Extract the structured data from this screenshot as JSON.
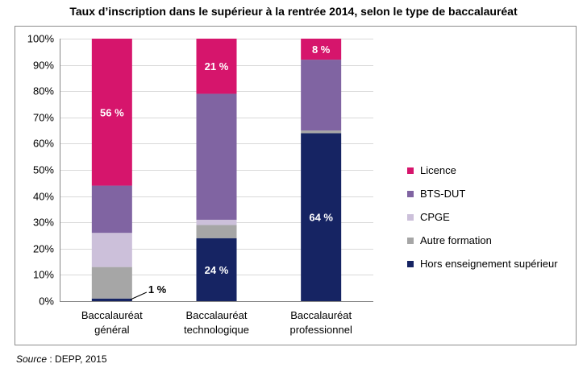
{
  "chart_data": {
    "type": "bar",
    "stacked": true,
    "title": "Taux d’inscription dans le supérieur à la rentrée 2014, selon le type de baccalauréat",
    "categories": [
      [
        "Baccalauréat",
        "général"
      ],
      [
        "Baccalauréat",
        "technologique"
      ],
      [
        "Baccalauréat",
        "professionnel"
      ]
    ],
    "ylim": [
      0,
      100
    ],
    "yticks": [
      "0%",
      "10%",
      "20%",
      "30%",
      "40%",
      "50%",
      "60%",
      "70%",
      "80%",
      "90%",
      "100%"
    ],
    "grid": true,
    "legend_position": "right",
    "series": [
      {
        "name": "Hors enseignement supérieur",
        "color": "#162463",
        "values": [
          1,
          24,
          64
        ],
        "labels": [
          "1 %",
          "24 %",
          "64 %"
        ]
      },
      {
        "name": "Autre formation",
        "color": "#a6a6a6",
        "values": [
          12,
          5,
          1
        ],
        "labels": [
          "",
          "",
          ""
        ]
      },
      {
        "name": "CPGE",
        "color": "#ccc0da",
        "values": [
          13,
          2,
          0
        ],
        "labels": [
          "",
          "",
          ""
        ]
      },
      {
        "name": "BTS-DUT",
        "color": "#8064a2",
        "values": [
          18,
          48,
          27
        ],
        "labels": [
          "",
          "",
          ""
        ]
      },
      {
        "name": "Licence",
        "color": "#d6156c",
        "values": [
          56,
          21,
          8
        ],
        "labels": [
          "56 %",
          "21 %",
          "8 %"
        ]
      }
    ]
  },
  "source": {
    "label": "Source",
    "text": " : DEPP, 2015"
  }
}
